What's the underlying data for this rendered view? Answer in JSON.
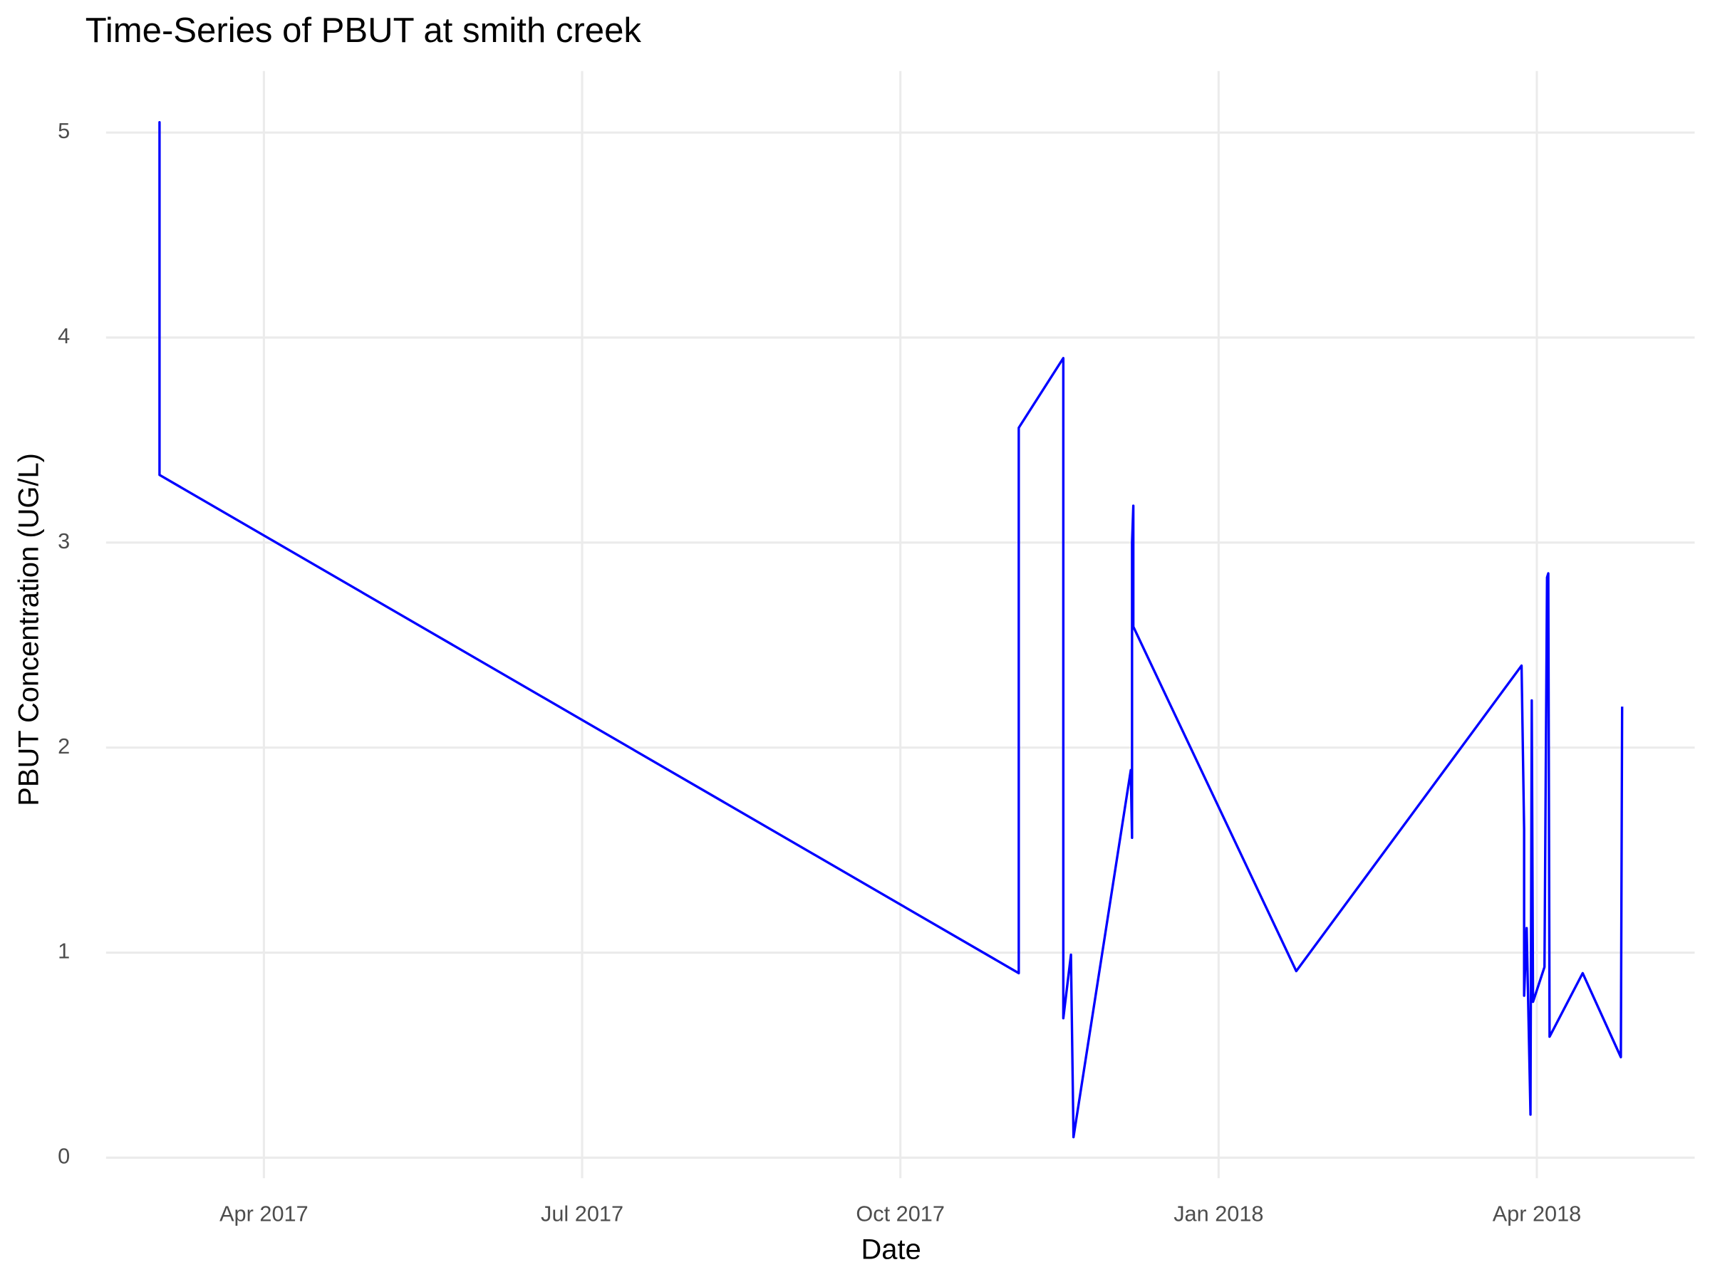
{
  "chart_data": {
    "type": "line",
    "title": "Time-Series of PBUT at smith creek",
    "x_label": "Date",
    "y_label": "PBUT Concentration (UG/L)",
    "x": [
      2017.168,
      2017.168,
      2017.168,
      2017.843,
      2017.843,
      2017.878,
      2017.878,
      2017.884,
      2017.886,
      2017.931,
      2017.932,
      2017.932,
      2017.933,
      2017.933,
      2018.061,
      2018.238,
      2018.24,
      2018.24,
      2018.242,
      2018.245,
      2018.246,
      2018.247,
      2018.256,
      2018.258,
      2018.259,
      2018.26,
      2018.286,
      2018.316,
      2018.317
    ],
    "series": [
      {
        "name": "PBUT",
        "color": "#0000ff",
        "values": [
          4.9,
          5.05,
          3.33,
          0.9,
          3.56,
          3.9,
          0.68,
          0.99,
          0.1,
          1.89,
          1.56,
          3.0,
          3.18,
          2.59,
          0.91,
          2.4,
          1.6,
          0.79,
          1.12,
          0.21,
          2.23,
          0.76,
          0.93,
          2.83,
          2.85,
          0.59,
          0.9,
          0.49,
          2.2
        ]
      }
    ],
    "xlim": [
      2017.126,
      2018.374
    ],
    "xticks": [
      {
        "value": 2017.25,
        "label": "Apr 2017"
      },
      {
        "value": 2017.5,
        "label": "Jul 2017"
      },
      {
        "value": 2017.75,
        "label": "Oct 2017"
      },
      {
        "value": 2018.0,
        "label": "Jan 2018"
      },
      {
        "value": 2018.25,
        "label": "Apr 2018"
      }
    ],
    "ylim": [
      -0.1,
      5.3
    ],
    "yticks": [
      0,
      1,
      2,
      3,
      4,
      5
    ],
    "grid": true
  }
}
